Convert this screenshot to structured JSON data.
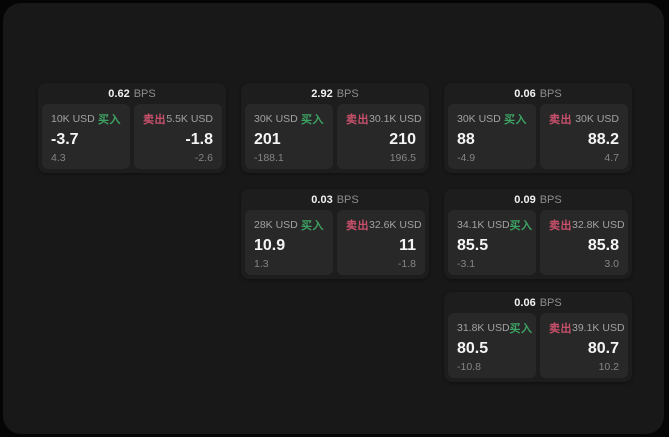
{
  "labels": {
    "buy": "买入",
    "sell": "卖出",
    "bps_suffix": "BPS"
  },
  "colors": {
    "buy_green": "#3da263",
    "sell_red": "#c9506b",
    "surface": "#181818",
    "card": "#1d1d1d",
    "tile": "#282828"
  },
  "cards": [
    {
      "col": 0,
      "row": 0,
      "bps": "0.62",
      "buy": {
        "amount": "10K USD",
        "price": "-3.7",
        "change": "4.3"
      },
      "sell": {
        "amount": "5.5K USD",
        "price": "-1.8",
        "change": "-2.6"
      }
    },
    {
      "col": 1,
      "row": 0,
      "bps": "2.92",
      "buy": {
        "amount": "30K USD",
        "price": "201",
        "change": "-188.1"
      },
      "sell": {
        "amount": "30.1K USD",
        "price": "210",
        "change": "196.5"
      }
    },
    {
      "col": 2,
      "row": 0,
      "bps": "0.06",
      "buy": {
        "amount": "30K USD",
        "price": "88",
        "change": "-4.9"
      },
      "sell": {
        "amount": "30K USD",
        "price": "88.2",
        "change": "4.7"
      }
    },
    {
      "col": 1,
      "row": 1,
      "bps": "0.03",
      "buy": {
        "amount": "28K USD",
        "price": "10.9",
        "change": "1.3"
      },
      "sell": {
        "amount": "32.6K USD",
        "price": "11",
        "change": "-1.8"
      }
    },
    {
      "col": 2,
      "row": 1,
      "bps": "0.09",
      "buy": {
        "amount": "34.1K USD",
        "price": "85.5",
        "change": "-3.1"
      },
      "sell": {
        "amount": "32.8K USD",
        "price": "85.8",
        "change": "3.0"
      }
    },
    {
      "col": 2,
      "row": 2,
      "bps": "0.06",
      "buy": {
        "amount": "31.8K USD",
        "price": "80.5",
        "change": "-10.8"
      },
      "sell": {
        "amount": "39.1K USD",
        "price": "80.7",
        "change": "10.2"
      }
    }
  ]
}
